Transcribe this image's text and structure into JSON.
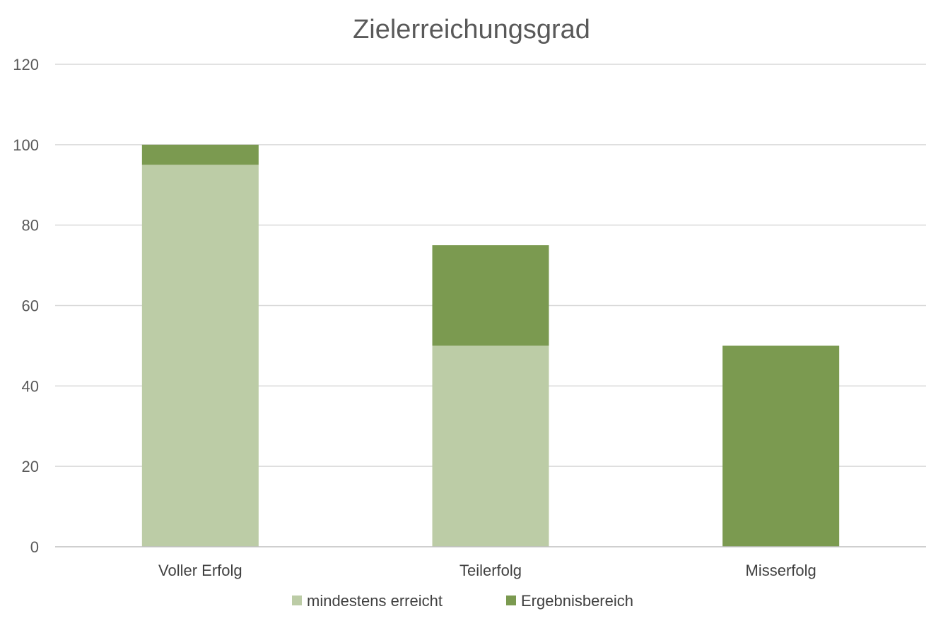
{
  "chart_data": {
    "type": "bar",
    "stacked": true,
    "title": "Zielerreichungsgrad",
    "xlabel": "",
    "ylabel": "",
    "ylim": [
      0,
      120
    ],
    "yticks": [
      0,
      20,
      40,
      60,
      80,
      100,
      120
    ],
    "categories": [
      "Voller Erfolg",
      "Teilerfolg",
      "Misserfolg"
    ],
    "series": [
      {
        "name": "mindestens erreicht",
        "values": [
          95,
          50,
          0
        ],
        "color": "#bccca6"
      },
      {
        "name": "Ergebnisbereich",
        "values": [
          5,
          25,
          50
        ],
        "color": "#7b9a50"
      }
    ],
    "grid": true,
    "legend": "bottom"
  }
}
